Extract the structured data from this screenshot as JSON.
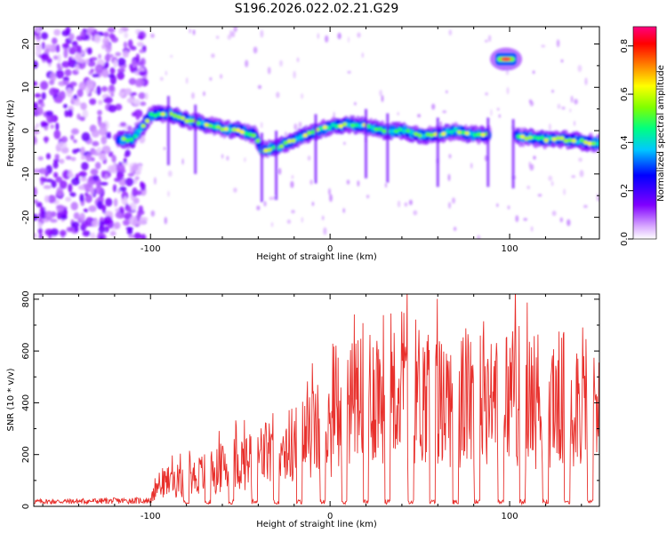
{
  "title": "S196.2026.022.02.21.G29",
  "chart_data": [
    {
      "type": "heatmap",
      "name": "spectrogram",
      "xlabel": "Height of straight line (km)",
      "ylabel": "Frequency (Hz)",
      "xlim": [
        -165,
        150
      ],
      "ylim": [
        -25,
        24
      ],
      "xticks": [
        -100,
        0,
        100
      ],
      "yticks": [
        20,
        10,
        0,
        -10,
        -20
      ],
      "colorbar": {
        "label": "Normalized spectral amplitude",
        "range": [
          0.0,
          0.88
        ],
        "ticks": [
          "0.0",
          "0.2",
          "0.4",
          "0.6",
          "0.8"
        ],
        "colors": [
          "#ffffff",
          "#d8a8ff",
          "#8000ff",
          "#0000ff",
          "#00c8ff",
          "#00ff80",
          "#80ff00",
          "#ffff00",
          "#ff8000",
          "#ff0000",
          "#ff0080"
        ]
      },
      "ridge": {
        "x": [
          -118,
          -110,
          -100,
          -90,
          -80,
          -70,
          -60,
          -50,
          -42,
          -38,
          -30,
          -20,
          -10,
          0,
          10,
          20,
          30,
          40,
          50,
          60,
          70,
          80,
          88,
          108,
          120,
          130,
          140,
          150
        ],
        "freq": [
          -2,
          -2,
          3.5,
          4,
          2.5,
          1.5,
          0.5,
          0,
          -1,
          -4.5,
          -4,
          -2,
          -0.5,
          1,
          1.5,
          1,
          0,
          0,
          -1,
          -1,
          0,
          -1,
          -1,
          -1.5,
          -2,
          -2,
          -2.5,
          -3
        ]
      },
      "isolated_peak": {
        "x": 98,
        "freq": 16.5,
        "amplitude": 0.85
      }
    },
    {
      "type": "line",
      "name": "snr",
      "xlabel": "Height of straight line (km)",
      "ylabel": "SNR (10 * v/v)",
      "xlim": [
        -165,
        150
      ],
      "ylim": [
        0,
        820
      ],
      "xticks": [
        -100,
        0,
        100
      ],
      "yticks": [
        0,
        200,
        400,
        600,
        800
      ],
      "color": "#e8302c",
      "envelope": {
        "x": [
          -165,
          -100,
          -95,
          -80,
          -60,
          -40,
          -30,
          -20,
          -10,
          0,
          5,
          10,
          20,
          30,
          40,
          50,
          60,
          80,
          100,
          120,
          150
        ],
        "y": [
          20,
          25,
          100,
          120,
          170,
          220,
          260,
          270,
          320,
          350,
          380,
          440,
          500,
          520,
          540,
          500,
          470,
          480,
          490,
          470,
          480
        ]
      },
      "dropouts_x": [
        -80,
        -68,
        -55,
        -42,
        -30,
        -17,
        -4,
        8,
        20,
        32,
        45,
        57,
        70,
        82,
        95,
        107,
        120,
        132,
        145
      ]
    }
  ]
}
